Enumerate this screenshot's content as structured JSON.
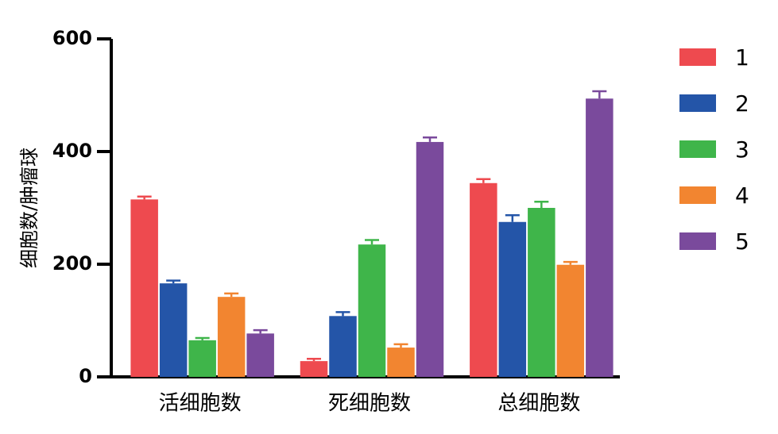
{
  "chart_data": {
    "type": "bar",
    "y_label": "细胞数/肿瘤球",
    "categories": [
      "活细胞数",
      "死细胞数",
      "总细胞数"
    ],
    "series": [
      {
        "name": "1",
        "color": "#ee4a4f",
        "values": [
          315,
          28,
          344
        ],
        "errors": [
          5,
          4,
          7
        ]
      },
      {
        "name": "2",
        "color": "#2455a8",
        "values": [
          166,
          108,
          275
        ],
        "errors": [
          5,
          7,
          12
        ]
      },
      {
        "name": "3",
        "color": "#3fb54a",
        "values": [
          65,
          235,
          300
        ],
        "errors": [
          4,
          8,
          11
        ]
      },
      {
        "name": "4",
        "color": "#f28530",
        "values": [
          142,
          52,
          199
        ],
        "errors": [
          6,
          6,
          5
        ]
      },
      {
        "name": "5",
        "color": "#7a4a9c",
        "values": [
          77,
          417,
          494
        ],
        "errors": [
          6,
          8,
          13
        ]
      }
    ],
    "ylim": [
      0,
      600
    ],
    "yticks": [
      0,
      200,
      400,
      600
    ],
    "legend": "right"
  }
}
